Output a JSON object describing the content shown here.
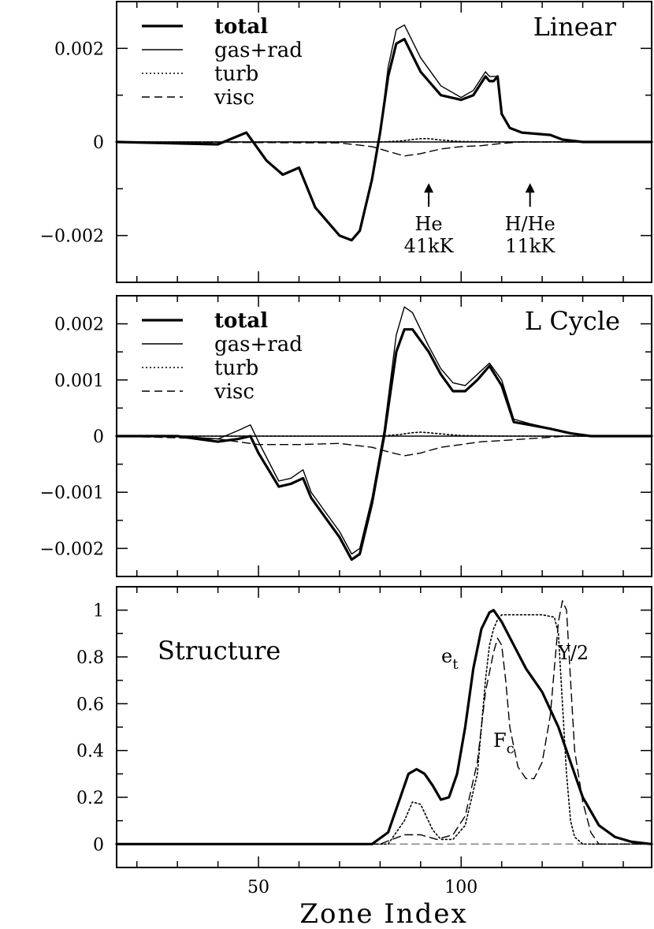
{
  "chart_data": [
    {
      "type": "line",
      "title": "Linear",
      "xlabel": "",
      "ylabel": "",
      "xlim": [
        15,
        147
      ],
      "ylim": [
        -0.003,
        0.003
      ],
      "x_ticks": [
        50,
        100
      ],
      "y_ticks": [
        {
          "value": 0.002,
          "label": "0.002"
        },
        {
          "value": 0,
          "label": "0"
        },
        {
          "value": -0.002,
          "label": "−0.002"
        }
      ],
      "legend": {
        "placement": "top-left"
      },
      "series": [
        {
          "name": "total",
          "style": "thick",
          "x": [
            15,
            40,
            47,
            52,
            56,
            60,
            64,
            68,
            70,
            73,
            75,
            78,
            80,
            82,
            84,
            86,
            90,
            95,
            100,
            103,
            106,
            107,
            108,
            109,
            110,
            112,
            115,
            122,
            125,
            130,
            147
          ],
          "y": [
            0,
            -5e-05,
            0.0002,
            -0.0004,
            -0.0007,
            -0.00055,
            -0.0014,
            -0.0018,
            -0.002,
            -0.0021,
            -0.0019,
            -0.0008,
            0.0002,
            0.0014,
            0.0021,
            0.0022,
            0.0015,
            0.001,
            0.0009,
            0.001,
            0.0014,
            0.0013,
            0.0013,
            0.0014,
            0.0006,
            0.0003,
            0.0002,
            0.00015,
            5e-05,
            0,
            0
          ]
        },
        {
          "name": "gas+rad",
          "style": "thin",
          "x": [
            15,
            40,
            47,
            52,
            56,
            60,
            64,
            68,
            70,
            73,
            75,
            78,
            80,
            82,
            84,
            86,
            90,
            95,
            100,
            103,
            106,
            107,
            108,
            109,
            110,
            112,
            115,
            122,
            125,
            130,
            147
          ],
          "y": [
            0,
            -5e-05,
            0.0002,
            -0.0004,
            -0.0007,
            -0.00055,
            -0.0014,
            -0.0018,
            -0.002,
            -0.0021,
            -0.0019,
            -0.0008,
            0.0002,
            0.0016,
            0.0024,
            0.0025,
            0.0018,
            0.0012,
            0.00095,
            0.0011,
            0.0015,
            0.0014,
            0.0014,
            0.0014,
            0.0006,
            0.0003,
            0.0002,
            0.00015,
            5e-05,
            0,
            0
          ]
        },
        {
          "name": "turb",
          "style": "dotted",
          "x": [
            15,
            80,
            85,
            88,
            90,
            92,
            95,
            100,
            110,
            147
          ],
          "y": [
            0,
            0,
            2e-05,
            5e-05,
            7e-05,
            7e-05,
            4e-05,
            1e-05,
            0,
            0
          ]
        },
        {
          "name": "visc",
          "style": "dashed",
          "x": [
            15,
            70,
            78,
            82,
            86,
            90,
            95,
            100,
            105,
            110,
            115,
            147
          ],
          "y": [
            0,
            -2e-05,
            -0.0001,
            -0.0002,
            -0.0003,
            -0.00025,
            -0.00015,
            -0.0001,
            -8e-05,
            -3e-05,
            0,
            0
          ]
        }
      ],
      "annotations": [
        {
          "line1": "He",
          "line2": "41kK",
          "x": 92,
          "arrow_tip_y": -0.00088
        },
        {
          "line1": "H/He",
          "line2": "11kK",
          "x": 117,
          "arrow_tip_y": -0.00088
        }
      ]
    },
    {
      "type": "line",
      "title": "L Cycle",
      "xlabel": "",
      "ylabel": "",
      "xlim": [
        15,
        147
      ],
      "ylim": [
        -0.0025,
        0.0025
      ],
      "x_ticks": [
        50,
        100
      ],
      "y_ticks": [
        {
          "value": 0.002,
          "label": "0.002"
        },
        {
          "value": 0.001,
          "label": "0.001"
        },
        {
          "value": 0,
          "label": "0"
        },
        {
          "value": -0.001,
          "label": "−0.001"
        },
        {
          "value": -0.002,
          "label": "−0.002"
        }
      ],
      "legend": {
        "placement": "top-left"
      },
      "series": [
        {
          "name": "total",
          "style": "thick",
          "x": [
            15,
            30,
            40,
            45,
            48,
            50,
            55,
            58,
            61,
            63,
            66,
            70,
            73,
            75,
            78,
            81,
            84,
            86,
            88,
            92,
            95,
            98,
            101,
            104,
            107,
            110,
            113,
            117,
            122,
            127,
            132,
            147
          ],
          "y": [
            0,
            0,
            -0.0001,
            -5e-05,
            0,
            -0.0003,
            -0.0009,
            -0.00085,
            -0.00075,
            -0.0011,
            -0.0014,
            -0.0018,
            -0.0022,
            -0.0021,
            -0.0012,
            0,
            0.0015,
            0.0019,
            0.0019,
            0.0015,
            0.0011,
            0.0008,
            0.0008,
            0.001,
            0.00125,
            0.0009,
            0.00025,
            0.0002,
            0.00013,
            5e-05,
            0,
            0
          ]
        },
        {
          "name": "gas+rad",
          "style": "thin",
          "x": [
            15,
            30,
            40,
            45,
            48,
            50,
            55,
            58,
            61,
            63,
            66,
            70,
            73,
            75,
            78,
            81,
            84,
            86,
            88,
            92,
            95,
            98,
            101,
            104,
            107,
            110,
            113,
            117,
            122,
            127,
            132,
            147
          ],
          "y": [
            0,
            0,
            -5e-05,
            0.0001,
            0.0002,
            -0.0001,
            -0.0008,
            -0.00075,
            -0.0006,
            -0.001,
            -0.0013,
            -0.0017,
            -0.0021,
            -0.002,
            -0.0011,
            0.0001,
            0.0018,
            0.0023,
            0.0022,
            0.0016,
            0.0012,
            0.00095,
            0.0009,
            0.0011,
            0.0013,
            0.001,
            0.0003,
            0.00022,
            0.00014,
            5e-05,
            0,
            0
          ]
        },
        {
          "name": "turb",
          "style": "dotted",
          "x": [
            15,
            80,
            85,
            88,
            90,
            92,
            95,
            100,
            110,
            147
          ],
          "y": [
            0,
            0,
            3e-05,
            6e-05,
            7e-05,
            6e-05,
            4e-05,
            1e-05,
            0,
            0
          ]
        },
        {
          "name": "visc",
          "style": "dashed",
          "x": [
            15,
            40,
            50,
            60,
            70,
            78,
            82,
            86,
            90,
            95,
            100,
            105,
            110,
            118,
            126,
            147
          ],
          "y": [
            0,
            -5e-05,
            -0.00015,
            -0.00015,
            -0.00013,
            -0.0002,
            -0.00028,
            -0.00035,
            -0.0003,
            -0.0002,
            -0.00015,
            -0.0001,
            -8e-05,
            -4e-05,
            0,
            0
          ]
        }
      ]
    },
    {
      "type": "line",
      "title": "Structure",
      "xlabel": "Zone Index",
      "ylabel": "",
      "xlim": [
        15,
        147
      ],
      "ylim": [
        -0.1,
        1.1
      ],
      "x_ticks": [
        {
          "value": 50,
          "label": "50"
        },
        {
          "value": 100,
          "label": "100"
        }
      ],
      "y_ticks": [
        {
          "value": 1,
          "label": "1"
        },
        {
          "value": 0.8,
          "label": "0.8"
        },
        {
          "value": 0.6,
          "label": "0.6"
        },
        {
          "value": 0.4,
          "label": "0.4"
        },
        {
          "value": 0.2,
          "label": "0.2"
        },
        {
          "value": 0,
          "label": "0"
        }
      ],
      "series": [
        {
          "name": "Y/2",
          "style": "thick",
          "x": [
            15,
            78,
            82,
            85,
            87,
            89,
            91,
            93,
            95,
            97,
            99,
            101,
            103,
            105,
            107,
            108,
            110,
            113,
            116,
            120,
            124,
            127,
            130,
            134,
            138,
            142,
            147
          ],
          "y": [
            0,
            0,
            0.05,
            0.2,
            0.3,
            0.32,
            0.3,
            0.25,
            0.19,
            0.2,
            0.3,
            0.5,
            0.75,
            0.92,
            0.99,
            1,
            0.95,
            0.85,
            0.75,
            0.65,
            0.5,
            0.35,
            0.2,
            0.08,
            0.03,
            0.01,
            0
          ]
        },
        {
          "name": "e_t",
          "style": "dotted",
          "x": [
            15,
            82,
            86,
            88,
            90,
            93,
            95,
            98,
            101,
            104,
            106,
            107,
            108,
            109,
            110,
            112,
            115,
            120,
            123,
            124,
            125,
            126,
            127,
            128,
            130,
            147
          ],
          "y": [
            0,
            0,
            0.1,
            0.18,
            0.17,
            0.06,
            0.02,
            0.02,
            0.08,
            0.3,
            0.7,
            0.85,
            0.92,
            0.96,
            0.98,
            0.98,
            0.98,
            0.98,
            0.97,
            0.9,
            0.6,
            0.3,
            0.1,
            0.03,
            0,
            0
          ]
        },
        {
          "name": "F_c",
          "style": "dashed",
          "x": [
            15,
            80,
            86,
            90,
            94,
            98,
            101,
            104,
            106,
            108,
            109,
            110,
            111,
            112,
            114,
            116,
            118,
            120,
            122,
            123,
            124,
            125,
            126,
            127,
            128,
            130,
            132,
            134,
            147
          ],
          "y": [
            0,
            0,
            0.04,
            0.04,
            0.02,
            0.04,
            0.12,
            0.35,
            0.65,
            0.82,
            0.88,
            0.85,
            0.7,
            0.5,
            0.33,
            0.28,
            0.28,
            0.35,
            0.55,
            0.75,
            0.95,
            1.04,
            1,
            0.7,
            0.4,
            0.18,
            0.05,
            0,
            0
          ]
        },
        {
          "name": "baseline",
          "style": "gray-dashed",
          "x": [
            15,
            147
          ],
          "y": [
            0,
            0
          ]
        }
      ],
      "annotations": [
        {
          "text": "Structure"
        },
        {
          "text": "e",
          "sub": "t"
        },
        {
          "text": "Y/2"
        },
        {
          "text": "F",
          "sub": "c"
        }
      ]
    }
  ]
}
